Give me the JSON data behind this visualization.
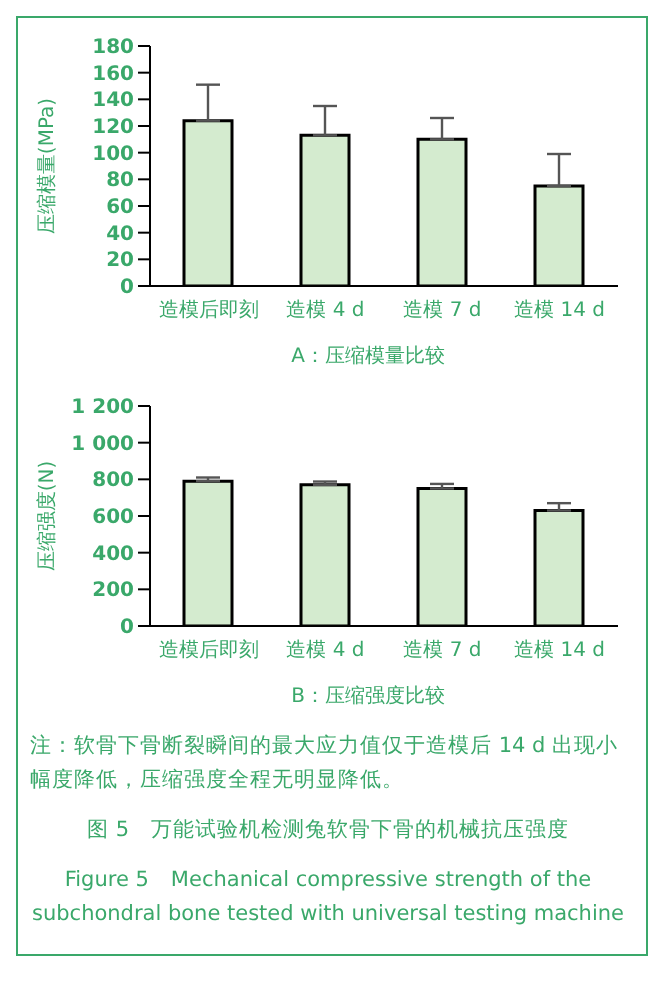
{
  "chart_data": [
    {
      "type": "bar",
      "categories": [
        "造模后即刻",
        "造模 4 d",
        "造模 7 d",
        "造模 14 d"
      ],
      "values": [
        124,
        113,
        110,
        75
      ],
      "errors": [
        [
          124,
          151
        ],
        [
          113,
          135
        ],
        [
          110,
          126
        ],
        [
          75,
          99
        ]
      ],
      "color": "#d4ebcf",
      "ylabel": "压缩模量(MPa)",
      "xlabel": "A：压缩模量比较",
      "ylim": [
        0,
        180
      ],
      "yticks": [
        0,
        20,
        40,
        60,
        80,
        100,
        120,
        140,
        160,
        180
      ],
      "grid": false,
      "legend": false
    },
    {
      "type": "bar",
      "categories": [
        "造模后即刻",
        "造模 4 d",
        "造模 7 d",
        "造模 14 d"
      ],
      "values": [
        790,
        770,
        750,
        630
      ],
      "errors": [
        [
          790,
          810
        ],
        [
          770,
          788
        ],
        [
          750,
          775
        ],
        [
          630,
          670
        ]
      ],
      "color": "#d4ebcf",
      "ylabel": "压缩强度(N)",
      "xlabel": "B：压缩强度比较",
      "ylim": [
        0,
        1200
      ],
      "yticks": [
        0,
        200,
        400,
        600,
        800,
        {
          "value": 1000,
          "label": "1 000"
        },
        {
          "value": 1200,
          "label": "1 200"
        }
      ],
      "grid": false,
      "legend": false,
      "annotations": [
        "注：软骨下骨断裂瞬间的最大应力值仅于造模后 14 d 出现小幅度降低，压缩强度全程无明显降低。",
        "图 5　万能试验机检测兔软骨下骨的机械抗压强度",
        "Figure 5　Mechanical compressive strength of the subchondral bone tested with universal testing machine"
      ]
    }
  ]
}
